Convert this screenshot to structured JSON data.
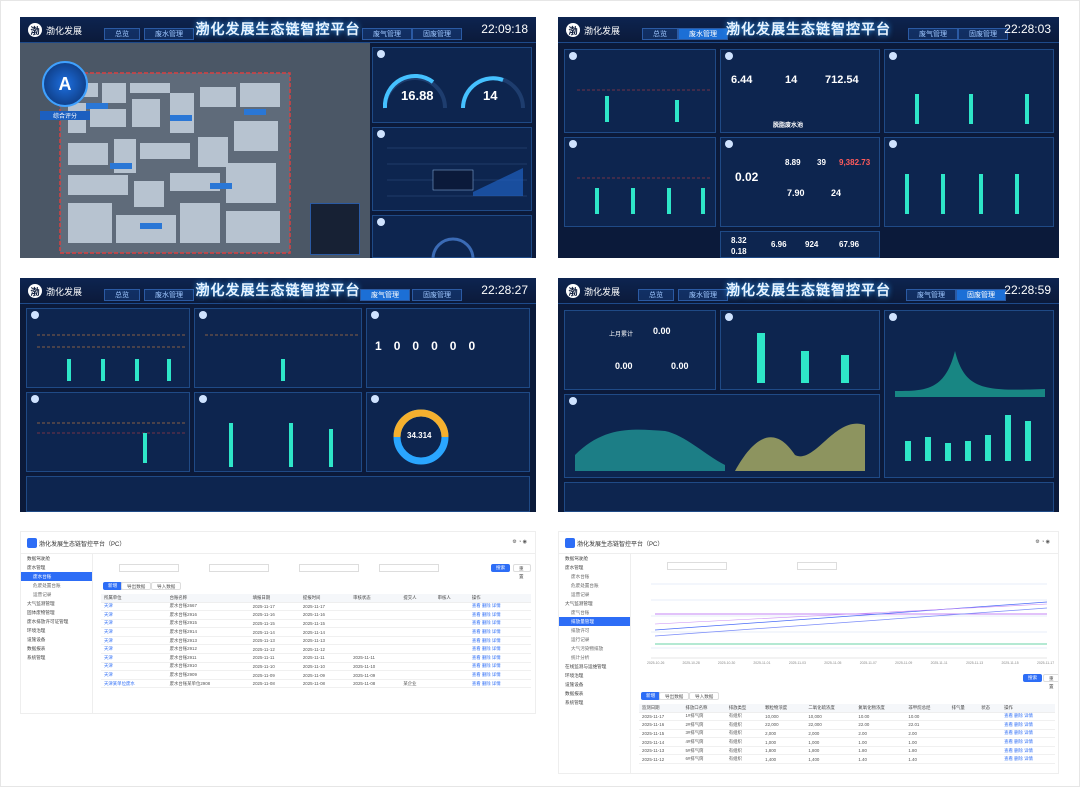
{
  "p1": {
    "title": "渤化发展生态链智控平台",
    "time": "22:09:18",
    "tabs": [
      "总览",
      "废水管理",
      "废气管理",
      "固废管理"
    ],
    "logo": "渤化发展",
    "badge": "A",
    "badge_label": "综合评分",
    "kpi1": "16.88",
    "kpi2": "14"
  },
  "p2": {
    "title": "渤化发展生态链智控平台",
    "time": "22:28:03",
    "tabs": [
      "总览",
      "废水管理",
      "废气管理",
      "固废管理"
    ],
    "logo": "渤化发展",
    "k1": "6.44",
    "k2": "14",
    "k3": "712.54",
    "center_label": "脱脂废水池",
    "k4": "0.02",
    "k5": "8.89",
    "k6": "39",
    "k7": "9,382.73",
    "k8": "7.90",
    "k9": "24",
    "k10": "8.32",
    "k11": "0.18",
    "k12": "6.96",
    "k13": "924",
    "k14": "67.96"
  },
  "p3": {
    "title": "渤化发展生态链智控平台",
    "time": "22:28:27",
    "tabs": [
      "总览",
      "废水管理",
      "废气管理",
      "固废管理"
    ],
    "logo": "渤化发展",
    "digits": [
      "1",
      "0",
      "0",
      "0",
      "0",
      "0"
    ],
    "donut_value": "34.314"
  },
  "p4": {
    "title": "渤化发展生态链智控平台",
    "time": "22:28:59",
    "tabs": [
      "总览",
      "废水管理",
      "废气管理",
      "固废管理"
    ],
    "logo": "渤化发展",
    "stat_label": "上月累计",
    "stat_value": "0.00",
    "stat2": "0.00",
    "stat3": "0.00"
  },
  "p5": {
    "app_title": "渤化发展生态链智控平台（PC）",
    "menu": [
      "数据驾驶舱",
      "废水管理",
      "废水台账",
      "危废处置台账",
      "运营记录",
      "大气监测管理",
      "固体废物管理",
      "废水排放许可证管理",
      "环境治理",
      "设施设备",
      "数据报表",
      "系统管理"
    ],
    "selected": 2,
    "buttons": [
      "新增",
      "导出数据",
      "导入数据"
    ],
    "search_btn": "搜索",
    "reset_btn": "重置",
    "headers": [
      "所属单位",
      "台账名称",
      "填报日期",
      "提报时间",
      "审核状态",
      "提交人",
      "审核人",
      "操作"
    ],
    "rows": [
      [
        "天津",
        "废水台账2667",
        "2025-11-17",
        "2025-11-17",
        "",
        "",
        "",
        "查看 删除 详情"
      ],
      [
        "天津",
        "废水台账2916",
        "2025-11-16",
        "2025-11-16",
        "",
        "",
        "",
        "查看 删除 详情"
      ],
      [
        "天津",
        "废水台账2915",
        "2025-11-15",
        "2025-11-15",
        "",
        "",
        "",
        "查看 删除 详情"
      ],
      [
        "天津",
        "废水台账2914",
        "2025-11-14",
        "2025-11-14",
        "",
        "",
        "",
        "查看 删除 详情"
      ],
      [
        "天津",
        "废水台账2913",
        "2025-11-13",
        "2025-11-13",
        "",
        "",
        "",
        "查看 删除 详情"
      ],
      [
        "天津",
        "废水台账2912",
        "2025-11-12",
        "2025-11-12",
        "",
        "",
        "",
        "查看 删除 详情"
      ],
      [
        "天津",
        "废水台账2911",
        "2025-11-11",
        "2025-11-11",
        "2025-11-11",
        "",
        "",
        "查看 删除 详情"
      ],
      [
        "天津",
        "废水台账2910",
        "2025-11-10",
        "2025-11-10",
        "2025-11-10",
        "",
        "",
        "查看 删除 详情"
      ],
      [
        "天津",
        "废水台账2909",
        "2025-11-09",
        "2025-11-09",
        "2025-11-09",
        "",
        "",
        "查看 删除 详情"
      ],
      [
        "天津某单位废水",
        "废水台账某单位2908",
        "2025-11-08",
        "2025-11-08",
        "2025-11-08",
        "某企业",
        "",
        "查看 删除 详情"
      ]
    ]
  },
  "p6": {
    "app_title": "渤化发展生态链智控平台（PC）",
    "menu": [
      "数据驾驶舱",
      "废水管理",
      "废水台账",
      "危废处置台账",
      "运营记录",
      "大气监测管理",
      "废气台账",
      "排放量管理",
      "排放许可",
      "运行记录",
      "大气污染物排放",
      "统计分析",
      "在线监测与运维管理",
      "环境治理",
      "设施设备",
      "数据报表",
      "系统管理"
    ],
    "selected": 7,
    "buttons": [
      "新增",
      "导出数据",
      "导入数据"
    ],
    "search_btn": "搜索",
    "reset_btn": "重置",
    "chart_xlabels": [
      "2025-10-26",
      "2025-10-28",
      "2025-10-30",
      "2025-11-01",
      "2025-11-03",
      "2025-11-05",
      "2025-11-07",
      "2025-11-09",
      "2025-11-11",
      "2025-11-13",
      "2025-11-15",
      "2025-11-17"
    ],
    "headers": [
      "监测日期",
      "排放口名称",
      "排放类型",
      "颗粒物浓度",
      "二氧化硫浓度",
      "氮氧化物浓度",
      "非甲烷总烃",
      "排气量",
      "状态",
      "操作"
    ],
    "rows": [
      [
        "2025-11-17",
        "1#排气筒",
        "有组织",
        "10,000",
        "10,000",
        "10.00",
        "10.00",
        "",
        "",
        "查看 删除 详情"
      ],
      [
        "2025-11-16",
        "2#排气筒",
        "有组织",
        "22,000",
        "22,000",
        "22.00",
        "22.01",
        "",
        "",
        "查看 删除 详情"
      ],
      [
        "2025-11-15",
        "3#排气筒",
        "有组织",
        "2,000",
        "2,000",
        "2.00",
        "2.00",
        "",
        "",
        "查看 删除 详情"
      ],
      [
        "2025-11-14",
        "4#排气筒",
        "有组织",
        "1,000",
        "1,000",
        "1.00",
        "1.00",
        "",
        "",
        "查看 删除 详情"
      ],
      [
        "2025-11-13",
        "5#排气筒",
        "有组织",
        "1,800",
        "1,800",
        "1.80",
        "1.80",
        "",
        "",
        "查看 删除 详情"
      ],
      [
        "2025-11-12",
        "6#排气筒",
        "有组织",
        "1,400",
        "1,400",
        "1.40",
        "1.40",
        "",
        "",
        "查看 删除 详情"
      ]
    ]
  }
}
